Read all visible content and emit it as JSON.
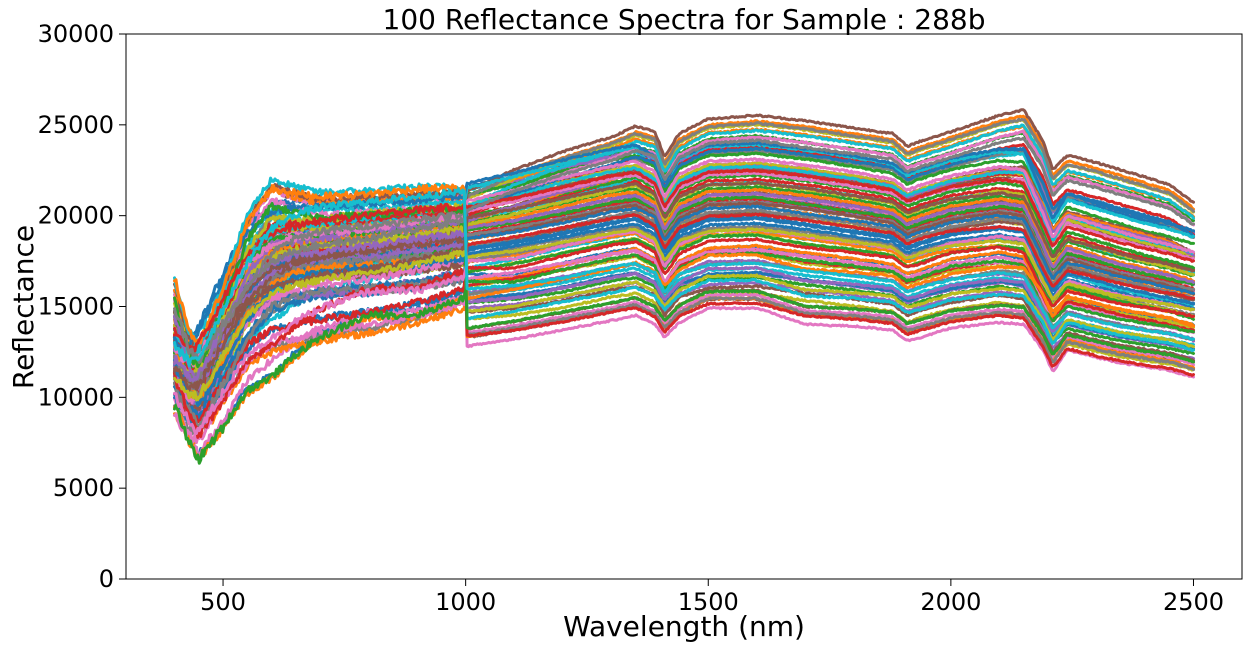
{
  "chart_data": {
    "type": "line",
    "title": "100 Reflectance Spectra for Sample : 288b",
    "xlabel": "Wavelength (nm)",
    "ylabel": "Reflectance",
    "xlim": [
      300,
      2600
    ],
    "ylim": [
      0,
      30000
    ],
    "xticks": [
      500,
      1000,
      1500,
      2000,
      2500
    ],
    "yticks": [
      0,
      5000,
      10000,
      15000,
      20000,
      25000,
      30000
    ],
    "grid": false,
    "legend": "none",
    "series_count": 100,
    "x": [
      400,
      430,
      450,
      500,
      550,
      600,
      650,
      700,
      800,
      900,
      999,
      1001,
      1100,
      1200,
      1300,
      1350,
      1390,
      1410,
      1440,
      1500,
      1600,
      1700,
      1800,
      1880,
      1910,
      1940,
      2000,
      2100,
      2150,
      2190,
      2210,
      2240,
      2300,
      2350,
      2400,
      2450,
      2500
    ],
    "palette": [
      "#1f77b4",
      "#ff7f0e",
      "#2ca02c",
      "#d62728",
      "#9467bd",
      "#8c564b",
      "#e377c2",
      "#7f7f7f",
      "#bcbd22",
      "#17becf"
    ],
    "representative_series": [
      {
        "color": "#ff7f0e",
        "values": [
          14200,
          12000,
          11500,
          13200,
          15000,
          16200,
          17000,
          17400,
          17800,
          18400,
          19000,
          21000,
          22200,
          23200,
          24000,
          24600,
          24300,
          22900,
          24200,
          25000,
          25200,
          24900,
          24500,
          24200,
          23500,
          23800,
          24300,
          25200,
          25500,
          23800,
          22200,
          23000,
          22600,
          22200,
          21800,
          21400,
          20400
        ]
      },
      {
        "color": "#8c564b",
        "values": [
          15900,
          13000,
          12000,
          15500,
          19500,
          21500,
          21000,
          20700,
          20800,
          21000,
          21000,
          13300,
          13700,
          14200,
          14700,
          15000,
          14500,
          13800,
          14600,
          15400,
          15400,
          14500,
          14400,
          14200,
          13600,
          13800,
          14300,
          14600,
          14500,
          13100,
          11900,
          13100,
          12700,
          12400,
          12200,
          12000,
          11600
        ]
      },
      {
        "color": "#1f77b4",
        "values": [
          10000,
          7800,
          6800,
          8500,
          10500,
          11200,
          12500,
          13500,
          14800,
          14800,
          15800,
          16800,
          16700,
          17400,
          18000,
          18200,
          17600,
          16300,
          17500,
          18200,
          18300,
          17900,
          17600,
          17300,
          16800,
          17000,
          17600,
          17900,
          17600,
          15300,
          14600,
          15400,
          15000,
          14700,
          14500,
          14300,
          14000
        ]
      },
      {
        "color": "#7f7f7f",
        "values": [
          9500,
          8200,
          8000,
          10000,
          12000,
          12800,
          13100,
          13400,
          13800,
          14400,
          15200,
          17800,
          18200,
          18700,
          19200,
          19400,
          18800,
          17600,
          18700,
          19300,
          19400,
          19100,
          18700,
          18400,
          17800,
          18100,
          18500,
          18700,
          18500,
          16400,
          15400,
          16300,
          15900,
          15600,
          15300,
          15100,
          14800
        ]
      },
      {
        "color": "#17becf",
        "values": [
          12500,
          12700,
          13500,
          16500,
          19000,
          20200,
          20400,
          20300,
          20400,
          20600,
          20800,
          21400,
          22000,
          22700,
          23300,
          23500,
          22900,
          21400,
          22800,
          23500,
          23600,
          23300,
          22900,
          22500,
          22000,
          22300,
          22800,
          23300,
          23400,
          20800,
          19500,
          21000,
          20400,
          20000,
          19600,
          19300,
          18900
        ]
      },
      {
        "color": "#bcbd22",
        "values": [
          11500,
          10000,
          9200,
          11500,
          14000,
          15800,
          16400,
          16700,
          16800,
          17000,
          17400,
          18400,
          18800,
          19300,
          19900,
          20100,
          19600,
          18300,
          19400,
          20100,
          20200,
          19800,
          19400,
          19100,
          18500,
          18800,
          19300,
          19700,
          19500,
          17300,
          16200,
          17100,
          16700,
          16300,
          16000,
          15700,
          15400
        ]
      },
      {
        "color": "#2ca02c",
        "values": [
          12000,
          11000,
          11300,
          14000,
          16500,
          18400,
          19200,
          19600,
          19900,
          20200,
          20500,
          15200,
          15400,
          15800,
          16400,
          16600,
          16100,
          15000,
          16000,
          16500,
          16600,
          16200,
          15900,
          15600,
          15000,
          15300,
          15700,
          16100,
          15900,
          14000,
          13000,
          13800,
          13400,
          13100,
          12900,
          12700,
          12400
        ]
      },
      {
        "color": "#d62728",
        "values": [
          13000,
          12200,
          12500,
          15000,
          17500,
          18600,
          19000,
          19300,
          19600,
          19900,
          20100,
          20000,
          20500,
          21100,
          21700,
          21900,
          21300,
          20000,
          21200,
          21900,
          22000,
          21700,
          21300,
          20900,
          20300,
          20600,
          21100,
          21500,
          21300,
          19000,
          17800,
          18900,
          18400,
          18000,
          17700,
          17400,
          17000
        ]
      },
      {
        "color": "#9467bd",
        "values": [
          12000,
          11000,
          11200,
          13800,
          16200,
          17400,
          17800,
          18000,
          18300,
          18700,
          19000,
          19200,
          19600,
          20200,
          20800,
          21000,
          20400,
          19100,
          20300,
          21000,
          21100,
          20800,
          20400,
          20000,
          19400,
          19700,
          20200,
          20600,
          20400,
          18200,
          17000,
          18100,
          17600,
          17200,
          16900,
          16600,
          16200
        ]
      },
      {
        "color": "#e377c2",
        "values": [
          12500,
          11600,
          12000,
          14600,
          17200,
          18200,
          18600,
          18800,
          19100,
          19500,
          19800,
          20600,
          21200,
          21900,
          22500,
          22800,
          22200,
          20800,
          22100,
          22800,
          22900,
          22600,
          22200,
          21800,
          21200,
          21500,
          22000,
          22500,
          22300,
          19900,
          18600,
          19800,
          19300,
          18900,
          18500,
          18200,
          17800
        ]
      }
    ]
  }
}
